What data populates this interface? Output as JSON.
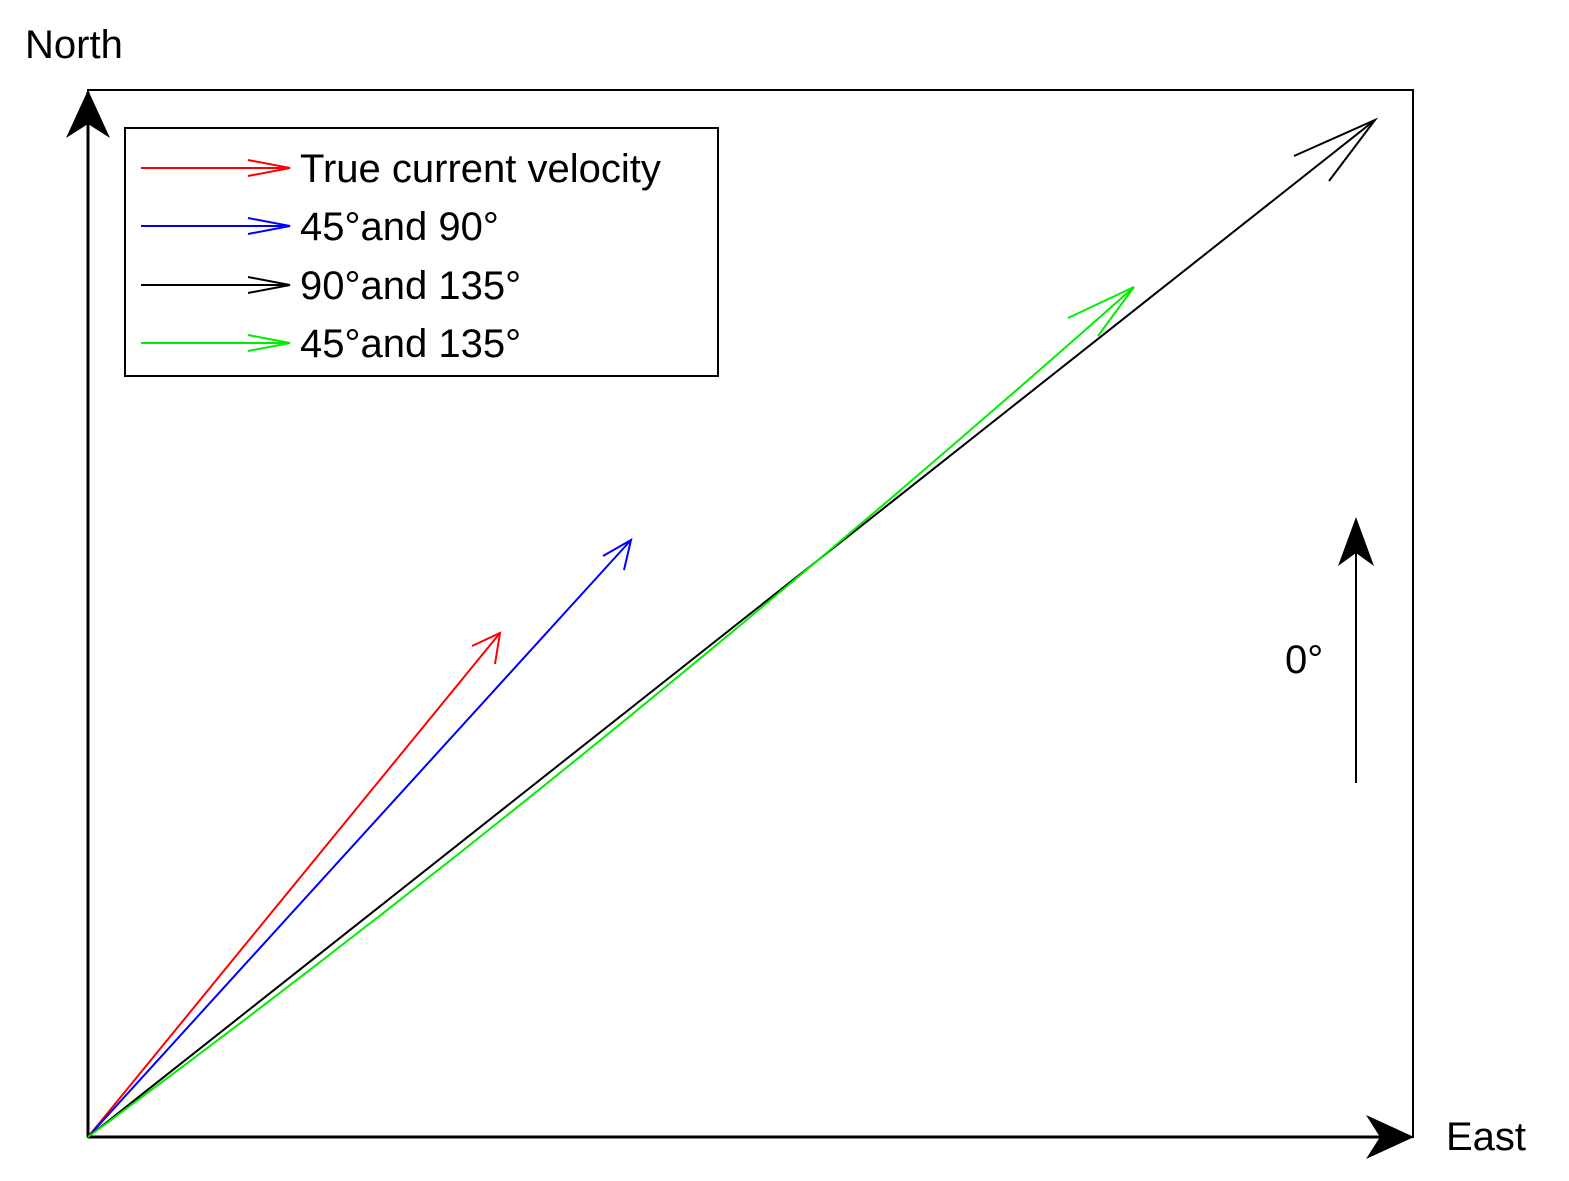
{
  "axes": {
    "north": "North",
    "east": "East"
  },
  "legend": {
    "items": [
      {
        "label": "True current velocity"
      },
      {
        "label": "45°and 90°"
      },
      {
        "label": "90°and 135°"
      },
      {
        "label": "45°and 135°"
      }
    ]
  },
  "reference": {
    "label": "0°"
  }
}
